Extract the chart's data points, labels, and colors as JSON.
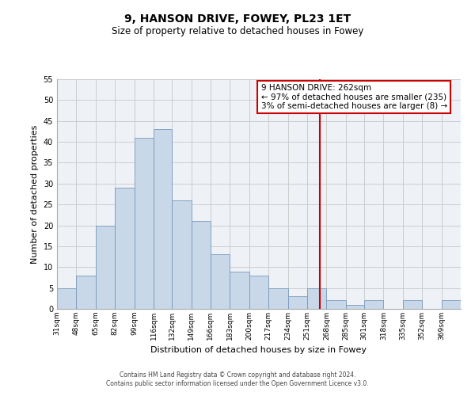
{
  "title": "9, HANSON DRIVE, FOWEY, PL23 1ET",
  "subtitle": "Size of property relative to detached houses in Fowey",
  "xlabel": "Distribution of detached houses by size in Fowey",
  "ylabel": "Number of detached properties",
  "bin_labels": [
    "31sqm",
    "48sqm",
    "65sqm",
    "82sqm",
    "99sqm",
    "116sqm",
    "132sqm",
    "149sqm",
    "166sqm",
    "183sqm",
    "200sqm",
    "217sqm",
    "234sqm",
    "251sqm",
    "268sqm",
    "285sqm",
    "301sqm",
    "318sqm",
    "335sqm",
    "352sqm",
    "369sqm"
  ],
  "bar_heights": [
    5,
    8,
    20,
    29,
    41,
    43,
    26,
    21,
    13,
    9,
    8,
    5,
    3,
    5,
    2,
    1,
    2,
    0,
    2,
    0,
    2
  ],
  "bin_edges": [
    31,
    48,
    65,
    82,
    99,
    116,
    132,
    149,
    166,
    183,
    200,
    217,
    234,
    251,
    268,
    285,
    301,
    318,
    335,
    352,
    369,
    386
  ],
  "bar_color": "#c8d8e8",
  "bar_edge_color": "#7799bb",
  "marker_value": 262,
  "marker_color": "#cc0000",
  "ylim": [
    0,
    55
  ],
  "yticks": [
    0,
    5,
    10,
    15,
    20,
    25,
    30,
    35,
    40,
    45,
    50,
    55
  ],
  "grid_color": "#cccccc",
  "bg_color": "#eef2f6",
  "annotation_title": "9 HANSON DRIVE: 262sqm",
  "annotation_line1": "← 97% of detached houses are smaller (235)",
  "annotation_line2": "3% of semi-detached houses are larger (8) →",
  "footer1": "Contains HM Land Registry data © Crown copyright and database right 2024.",
  "footer2": "Contains public sector information licensed under the Open Government Licence v3.0."
}
